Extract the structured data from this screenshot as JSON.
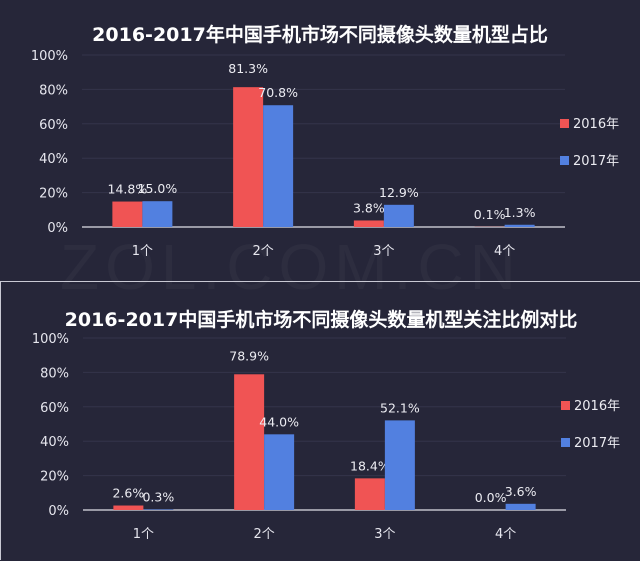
{
  "watermark": "ZOL.COM.CN",
  "colors": {
    "2016": "#f05454",
    "2017": "#5280e0",
    "background": "#262639"
  },
  "chart_data": [
    {
      "type": "bar",
      "title": "2016-2017年中国手机市场不同摄像头数量机型占比",
      "categories": [
        "1个",
        "2个",
        "3个",
        "4个"
      ],
      "series": [
        {
          "name": "2016年",
          "values": [
            14.8,
            81.3,
            3.8,
            0.1
          ],
          "labels": [
            "14.8%",
            "81.3%",
            "3.8%",
            "0.1%"
          ]
        },
        {
          "name": "2017年",
          "values": [
            15.0,
            70.8,
            12.9,
            1.3
          ],
          "labels": [
            "15.0%",
            "70.8%",
            "12.9%",
            "1.3%"
          ]
        }
      ],
      "yticks": [
        "0%",
        "20%",
        "40%",
        "60%",
        "80%",
        "100%"
      ],
      "ylim": [
        0,
        100
      ],
      "grid": true,
      "legend": "right"
    },
    {
      "type": "bar",
      "title": "2016-2017中国手机市场不同摄像头数量机型关注比例对比",
      "categories": [
        "1个",
        "2个",
        "3个",
        "4个"
      ],
      "series": [
        {
          "name": "2016年",
          "values": [
            2.6,
            78.9,
            18.4,
            0.0
          ],
          "labels": [
            "2.6%",
            "78.9%",
            "18.4%",
            "0.0%"
          ]
        },
        {
          "name": "2017年",
          "values": [
            0.3,
            44.0,
            52.1,
            3.6
          ],
          "labels": [
            "0.3%",
            "44.0%",
            "52.1%",
            "3.6%"
          ]
        }
      ],
      "yticks": [
        "0%",
        "20%",
        "40%",
        "60%",
        "80%",
        "100%"
      ],
      "ylim": [
        0,
        100
      ],
      "grid": true,
      "legend": "right"
    }
  ]
}
